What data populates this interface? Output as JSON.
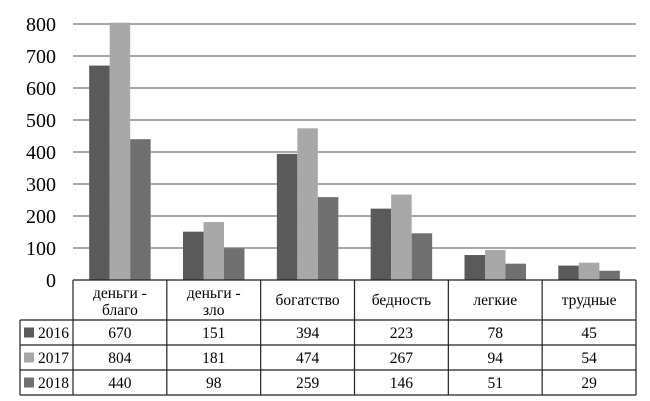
{
  "chart_data": {
    "type": "bar",
    "categories": [
      "деньги - благо",
      "деньги - зло",
      "богатство",
      "бедность",
      "легкие",
      "трудные"
    ],
    "category_lines": [
      [
        "деньги -",
        "благо"
      ],
      [
        "деньги -",
        "зло"
      ],
      [
        "богатство"
      ],
      [
        "бедность"
      ],
      [
        "легкие"
      ],
      [
        "трудные"
      ]
    ],
    "series": [
      {
        "name": "2016",
        "color": "#5a5a5a",
        "values": [
          670,
          151,
          394,
          223,
          78,
          45
        ]
      },
      {
        "name": "2017",
        "color": "#a8a8a8",
        "values": [
          804,
          181,
          474,
          267,
          94,
          54
        ]
      },
      {
        "name": "2018",
        "color": "#707070",
        "values": [
          440,
          98,
          259,
          146,
          51,
          29
        ]
      }
    ],
    "ylim": [
      0,
      800
    ],
    "yticks": [
      0,
      100,
      200,
      300,
      400,
      500,
      600,
      700,
      800
    ],
    "grid": true,
    "data_table": true
  }
}
